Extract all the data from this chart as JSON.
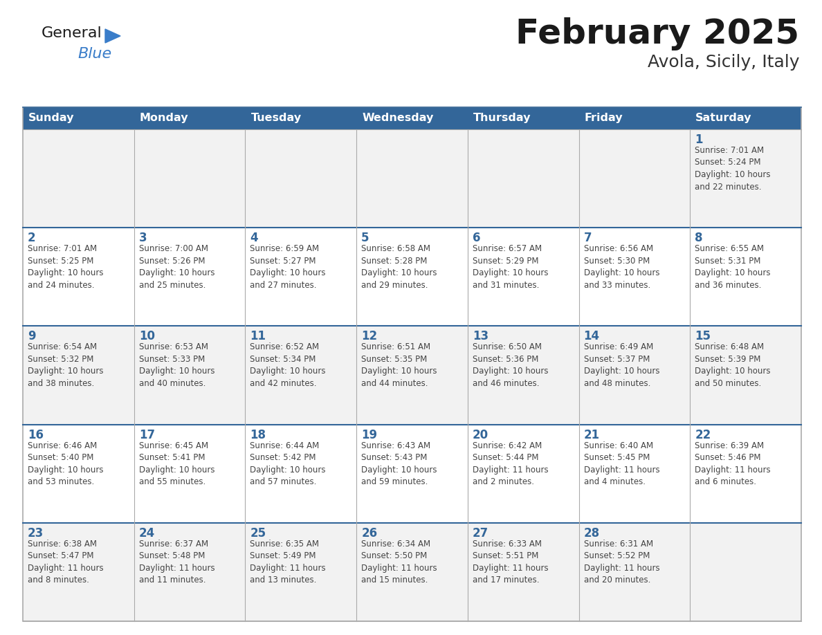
{
  "title": "February 2025",
  "subtitle": "Avola, Sicily, Italy",
  "header_bg": "#336699",
  "header_text": "#FFFFFF",
  "day_number_color": "#336699",
  "text_color": "#444444",
  "border_color": "#AAAAAA",
  "alt_row_bg": "#F2F2F2",
  "white_bg": "#FFFFFF",
  "days_of_week": [
    "Sunday",
    "Monday",
    "Tuesday",
    "Wednesday",
    "Thursday",
    "Friday",
    "Saturday"
  ],
  "weeks": [
    [
      {
        "day": null,
        "info": null
      },
      {
        "day": null,
        "info": null
      },
      {
        "day": null,
        "info": null
      },
      {
        "day": null,
        "info": null
      },
      {
        "day": null,
        "info": null
      },
      {
        "day": null,
        "info": null
      },
      {
        "day": 1,
        "info": "Sunrise: 7:01 AM\nSunset: 5:24 PM\nDaylight: 10 hours\nand 22 minutes."
      }
    ],
    [
      {
        "day": 2,
        "info": "Sunrise: 7:01 AM\nSunset: 5:25 PM\nDaylight: 10 hours\nand 24 minutes."
      },
      {
        "day": 3,
        "info": "Sunrise: 7:00 AM\nSunset: 5:26 PM\nDaylight: 10 hours\nand 25 minutes."
      },
      {
        "day": 4,
        "info": "Sunrise: 6:59 AM\nSunset: 5:27 PM\nDaylight: 10 hours\nand 27 minutes."
      },
      {
        "day": 5,
        "info": "Sunrise: 6:58 AM\nSunset: 5:28 PM\nDaylight: 10 hours\nand 29 minutes."
      },
      {
        "day": 6,
        "info": "Sunrise: 6:57 AM\nSunset: 5:29 PM\nDaylight: 10 hours\nand 31 minutes."
      },
      {
        "day": 7,
        "info": "Sunrise: 6:56 AM\nSunset: 5:30 PM\nDaylight: 10 hours\nand 33 minutes."
      },
      {
        "day": 8,
        "info": "Sunrise: 6:55 AM\nSunset: 5:31 PM\nDaylight: 10 hours\nand 36 minutes."
      }
    ],
    [
      {
        "day": 9,
        "info": "Sunrise: 6:54 AM\nSunset: 5:32 PM\nDaylight: 10 hours\nand 38 minutes."
      },
      {
        "day": 10,
        "info": "Sunrise: 6:53 AM\nSunset: 5:33 PM\nDaylight: 10 hours\nand 40 minutes."
      },
      {
        "day": 11,
        "info": "Sunrise: 6:52 AM\nSunset: 5:34 PM\nDaylight: 10 hours\nand 42 minutes."
      },
      {
        "day": 12,
        "info": "Sunrise: 6:51 AM\nSunset: 5:35 PM\nDaylight: 10 hours\nand 44 minutes."
      },
      {
        "day": 13,
        "info": "Sunrise: 6:50 AM\nSunset: 5:36 PM\nDaylight: 10 hours\nand 46 minutes."
      },
      {
        "day": 14,
        "info": "Sunrise: 6:49 AM\nSunset: 5:37 PM\nDaylight: 10 hours\nand 48 minutes."
      },
      {
        "day": 15,
        "info": "Sunrise: 6:48 AM\nSunset: 5:39 PM\nDaylight: 10 hours\nand 50 minutes."
      }
    ],
    [
      {
        "day": 16,
        "info": "Sunrise: 6:46 AM\nSunset: 5:40 PM\nDaylight: 10 hours\nand 53 minutes."
      },
      {
        "day": 17,
        "info": "Sunrise: 6:45 AM\nSunset: 5:41 PM\nDaylight: 10 hours\nand 55 minutes."
      },
      {
        "day": 18,
        "info": "Sunrise: 6:44 AM\nSunset: 5:42 PM\nDaylight: 10 hours\nand 57 minutes."
      },
      {
        "day": 19,
        "info": "Sunrise: 6:43 AM\nSunset: 5:43 PM\nDaylight: 10 hours\nand 59 minutes."
      },
      {
        "day": 20,
        "info": "Sunrise: 6:42 AM\nSunset: 5:44 PM\nDaylight: 11 hours\nand 2 minutes."
      },
      {
        "day": 21,
        "info": "Sunrise: 6:40 AM\nSunset: 5:45 PM\nDaylight: 11 hours\nand 4 minutes."
      },
      {
        "day": 22,
        "info": "Sunrise: 6:39 AM\nSunset: 5:46 PM\nDaylight: 11 hours\nand 6 minutes."
      }
    ],
    [
      {
        "day": 23,
        "info": "Sunrise: 6:38 AM\nSunset: 5:47 PM\nDaylight: 11 hours\nand 8 minutes."
      },
      {
        "day": 24,
        "info": "Sunrise: 6:37 AM\nSunset: 5:48 PM\nDaylight: 11 hours\nand 11 minutes."
      },
      {
        "day": 25,
        "info": "Sunrise: 6:35 AM\nSunset: 5:49 PM\nDaylight: 11 hours\nand 13 minutes."
      },
      {
        "day": 26,
        "info": "Sunrise: 6:34 AM\nSunset: 5:50 PM\nDaylight: 11 hours\nand 15 minutes."
      },
      {
        "day": 27,
        "info": "Sunrise: 6:33 AM\nSunset: 5:51 PM\nDaylight: 11 hours\nand 17 minutes."
      },
      {
        "day": 28,
        "info": "Sunrise: 6:31 AM\nSunset: 5:52 PM\nDaylight: 11 hours\nand 20 minutes."
      },
      {
        "day": null,
        "info": null
      }
    ]
  ],
  "logo_triangle_color": "#3A7DC9",
  "logo_blue_color": "#3A7DC9",
  "logo_general_color": "#1a1a1a"
}
